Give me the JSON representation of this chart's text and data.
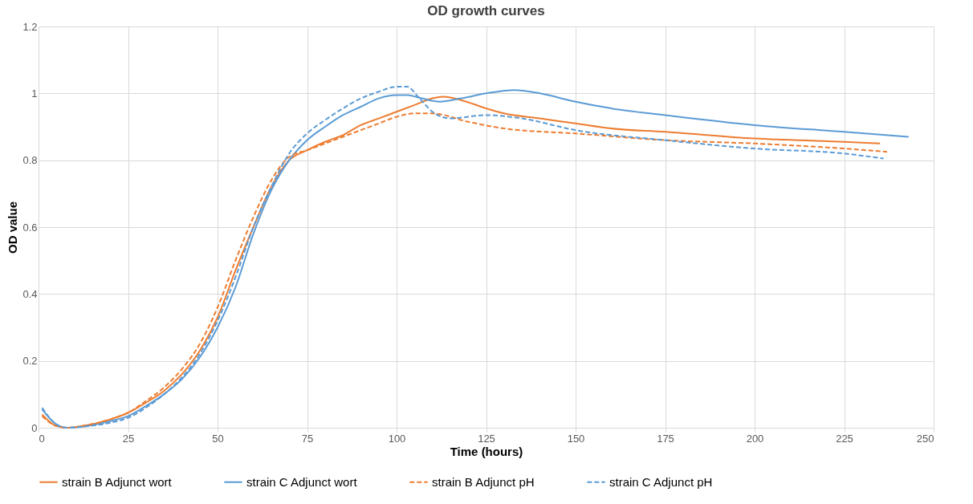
{
  "chart_data": {
    "type": "line",
    "title": "OD growth curves",
    "xlabel": "Time (hours)",
    "ylabel": "OD value",
    "xlim": [
      0,
      250
    ],
    "xticks": [
      0,
      25,
      50,
      75,
      100,
      125,
      150,
      175,
      200,
      225,
      250
    ],
    "ylim": [
      0,
      1.2
    ],
    "yticks": [
      0,
      0.2,
      0.4,
      0.6,
      0.8,
      1,
      1.2
    ],
    "grid": true,
    "legend": "bottom",
    "marker": "none",
    "series": [
      {
        "name": "strain B Adjunct wort",
        "color": "#ed7d31",
        "line_style": "solid",
        "x": [
          1,
          5,
          8,
          12,
          20,
          25,
          30,
          35,
          40,
          45,
          50,
          55,
          60,
          65,
          70,
          75,
          80,
          85,
          90,
          95,
          100,
          105,
          110,
          113,
          118,
          125,
          130,
          140,
          150,
          160,
          175,
          200,
          225,
          235
        ],
        "values": [
          0.04,
          0.005,
          0,
          0.005,
          0.025,
          0.045,
          0.075,
          0.11,
          0.16,
          0.23,
          0.33,
          0.47,
          0.6,
          0.72,
          0.8,
          0.83,
          0.855,
          0.875,
          0.905,
          0.925,
          0.945,
          0.965,
          0.985,
          0.99,
          0.98,
          0.955,
          0.94,
          0.925,
          0.91,
          0.895,
          0.885,
          0.865,
          0.855,
          0.85
        ]
      },
      {
        "name": "strain C Adjunct wort",
        "color": "#5b9bd5",
        "line_style": "solid",
        "x": [
          1,
          5,
          8,
          12,
          20,
          25,
          30,
          35,
          40,
          45,
          50,
          55,
          60,
          65,
          70,
          75,
          80,
          85,
          90,
          95,
          100,
          103,
          107,
          112,
          118,
          125,
          133,
          140,
          150,
          160,
          175,
          200,
          225,
          243
        ],
        "values": [
          0.055,
          0.01,
          0,
          0.003,
          0.02,
          0.035,
          0.065,
          0.1,
          0.145,
          0.21,
          0.3,
          0.42,
          0.58,
          0.71,
          0.8,
          0.86,
          0.9,
          0.935,
          0.96,
          0.985,
          0.995,
          0.995,
          0.985,
          0.975,
          0.985,
          1,
          1.01,
          1,
          0.975,
          0.955,
          0.935,
          0.905,
          0.885,
          0.87
        ]
      },
      {
        "name": "strain B Adjunct pH",
        "color": "#ed7d31",
        "line_style": "dashed",
        "x": [
          1,
          5,
          8,
          12,
          20,
          25,
          30,
          35,
          40,
          45,
          50,
          55,
          60,
          65,
          70,
          75,
          80,
          85,
          90,
          95,
          100,
          105,
          110,
          120,
          130,
          150,
          175,
          200,
          225,
          237
        ],
        "values": [
          0.035,
          0.005,
          0,
          0.005,
          0.025,
          0.045,
          0.08,
          0.12,
          0.175,
          0.25,
          0.36,
          0.5,
          0.63,
          0.74,
          0.81,
          0.83,
          0.85,
          0.87,
          0.89,
          0.91,
          0.93,
          0.94,
          0.94,
          0.915,
          0.895,
          0.88,
          0.86,
          0.85,
          0.835,
          0.825
        ]
      },
      {
        "name": "strain C Adjunct pH",
        "color": "#5b9bd5",
        "line_style": "dashed",
        "x": [
          1,
          5,
          8,
          12,
          20,
          25,
          30,
          35,
          40,
          45,
          50,
          55,
          60,
          65,
          70,
          75,
          80,
          85,
          90,
          95,
          100,
          103,
          106,
          110,
          115,
          125,
          135,
          150,
          175,
          200,
          225,
          236
        ],
        "values": [
          0.06,
          0.01,
          0,
          0.003,
          0.015,
          0.03,
          0.06,
          0.1,
          0.15,
          0.22,
          0.32,
          0.45,
          0.6,
          0.72,
          0.82,
          0.88,
          0.92,
          0.955,
          0.985,
          1.005,
          1.02,
          1.02,
          0.99,
          0.945,
          0.925,
          0.935,
          0.925,
          0.89,
          0.86,
          0.835,
          0.82,
          0.805
        ]
      }
    ]
  }
}
